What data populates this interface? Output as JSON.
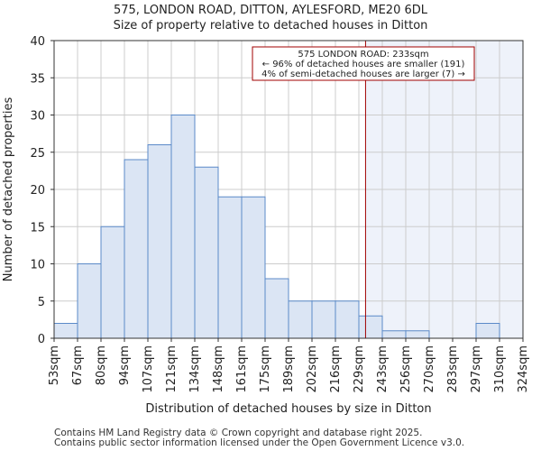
{
  "chart_data": {
    "type": "bar",
    "title": "575, LONDON ROAD, DITTON, AYLESFORD, ME20 6DL",
    "subtitle": "Size of property relative to detached houses in Ditton",
    "xlabel": "Distribution of detached houses by size in Ditton",
    "ylabel": "Number of detached properties",
    "ylim": [
      0,
      40
    ],
    "yticks": [
      0,
      5,
      10,
      15,
      20,
      25,
      30,
      35,
      40
    ],
    "bin_edges": [
      "53sqm",
      "67sqm",
      "80sqm",
      "94sqm",
      "107sqm",
      "121sqm",
      "134sqm",
      "148sqm",
      "161sqm",
      "175sqm",
      "189sqm",
      "202sqm",
      "216sqm",
      "229sqm",
      "243sqm",
      "256sqm",
      "270sqm",
      "283sqm",
      "297sqm",
      "310sqm",
      "324sqm"
    ],
    "values": [
      2,
      10,
      15,
      24,
      26,
      30,
      23,
      19,
      19,
      8,
      5,
      5,
      5,
      3,
      1,
      1,
      0,
      0,
      2,
      0
    ],
    "marker": {
      "value_sqm": 233,
      "lines": [
        "575 LONDON ROAD: 233sqm",
        "← 96% of detached houses are smaller (191)",
        "4% of semi-detached houses are larger (7) →"
      ]
    },
    "colors": {
      "bar_fill": "#dbe5f4",
      "bar_stroke": "#5b8ac8",
      "highlight_bg": "#eef2fa",
      "marker": "#a00000",
      "grid": "#cccccc"
    }
  },
  "footer": {
    "line1": "Contains HM Land Registry data © Crown copyright and database right 2025.",
    "line2": "Contains public sector information licensed under the Open Government Licence v3.0."
  }
}
